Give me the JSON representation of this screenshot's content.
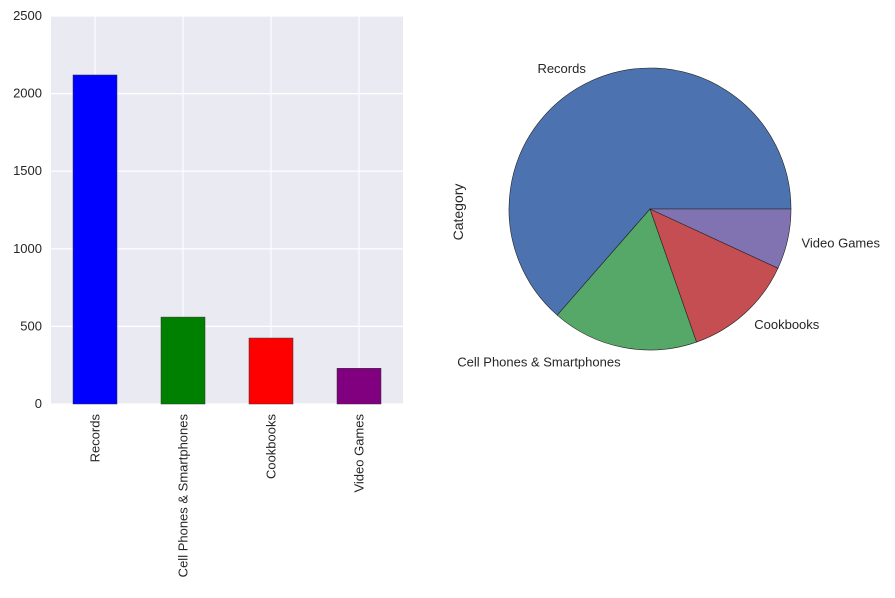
{
  "chart_data": [
    {
      "type": "bar",
      "categories": [
        "Records",
        "Cell Phones & Smartphones",
        "Cookbooks",
        "Video Games"
      ],
      "values": [
        2120,
        560,
        425,
        230
      ],
      "colors": [
        "#0000ff",
        "#008000",
        "#ff0000",
        "#800080"
      ],
      "ylim": [
        0,
        2500
      ],
      "yticks": [
        "0",
        "500",
        "1000",
        "1500",
        "2000",
        "2500"
      ],
      "ytick_values": [
        0,
        500,
        1000,
        1500,
        2000,
        2500
      ],
      "grid": true,
      "background": "#eaeaf2",
      "xtick_rotation": "vertical"
    },
    {
      "type": "pie",
      "labels": [
        "Records",
        "Cell Phones & Smartphones",
        "Cookbooks",
        "Video Games"
      ],
      "values": [
        2120,
        560,
        425,
        230
      ],
      "colors": [
        "#4c72b0",
        "#55a868",
        "#c44e52",
        "#8172b2"
      ],
      "ylabel": "Category",
      "start_angle_deg": 0,
      "direction": "counterclockwise"
    }
  ]
}
